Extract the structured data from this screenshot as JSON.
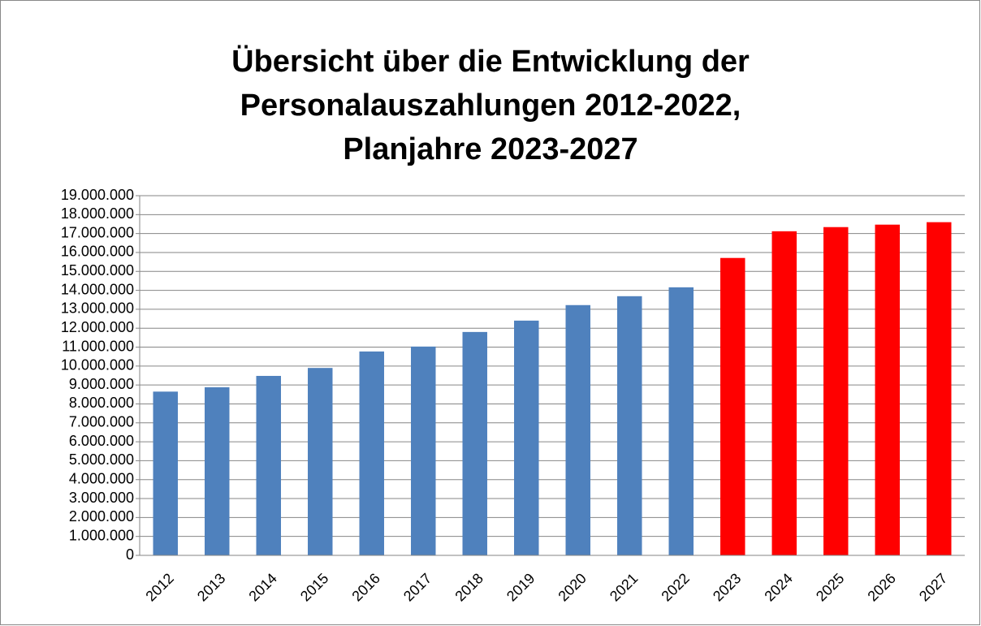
{
  "chart_data": {
    "type": "bar",
    "title": [
      "Übersicht über die Entwicklung der",
      "Personalauszahlungen 2012-2022,",
      "Planjahre 2023-2027"
    ],
    "categories": [
      "2012",
      "2013",
      "2014",
      "2015",
      "2016",
      "2017",
      "2018",
      "2019",
      "2020",
      "2021",
      "2022",
      "2023",
      "2024",
      "2025",
      "2026",
      "2027"
    ],
    "values": [
      8650000,
      8880000,
      9480000,
      9900000,
      10770000,
      11030000,
      11800000,
      12400000,
      13220000,
      13690000,
      14160000,
      15710000,
      17120000,
      17340000,
      17470000,
      17600000
    ],
    "colors": [
      "#4f81bd",
      "#4f81bd",
      "#4f81bd",
      "#4f81bd",
      "#4f81bd",
      "#4f81bd",
      "#4f81bd",
      "#4f81bd",
      "#4f81bd",
      "#4f81bd",
      "#4f81bd",
      "#ff0000",
      "#ff0000",
      "#ff0000",
      "#ff0000",
      "#ff0000"
    ],
    "ylim": [
      0,
      19000000
    ],
    "yticks": [
      0,
      {
        "value": 1000000,
        "label": "1.000.000"
      },
      {
        "value": 2000000,
        "label": "2.000.000"
      },
      {
        "value": 3000000,
        "label": "3.000.000"
      },
      {
        "value": 4000000,
        "label": "4.000.000"
      },
      {
        "value": 5000000,
        "label": "5.000.000"
      },
      {
        "value": 6000000,
        "label": "6.000.000"
      },
      {
        "value": 7000000,
        "label": "7.000.000"
      },
      {
        "value": 8000000,
        "label": "8.000.000"
      },
      {
        "value": 9000000,
        "label": "9.000.000"
      },
      {
        "value": 10000000,
        "label": "10.000.000"
      },
      {
        "value": 11000000,
        "label": "11.000.000"
      },
      {
        "value": 12000000,
        "label": "12.000.000"
      },
      {
        "value": 13000000,
        "label": "13.000.000"
      },
      {
        "value": 14000000,
        "label": "14.000.000"
      },
      {
        "value": 15000000,
        "label": "15.000.000"
      },
      {
        "value": 16000000,
        "label": "16.000.000"
      },
      {
        "value": 17000000,
        "label": "17.000.000"
      },
      {
        "value": 18000000,
        "label": "18.000.000"
      },
      {
        "value": 19000000,
        "label": "19.000.000"
      }
    ],
    "grid": true
  }
}
